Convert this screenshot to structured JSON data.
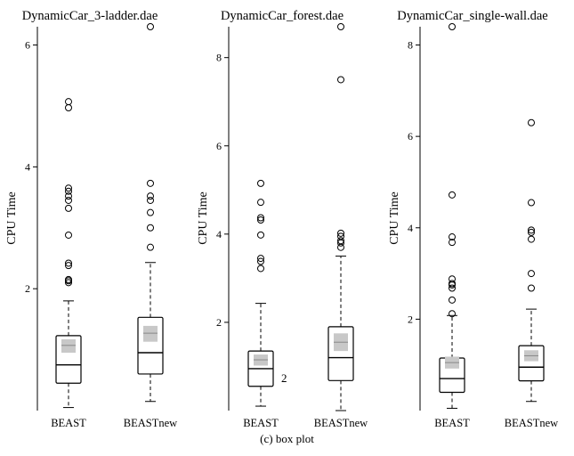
{
  "caption": "(c) box plot",
  "chart_data": [
    {
      "type": "box",
      "title": "DynamicCar_3-ladder.dae",
      "ylabel": "CPU Time",
      "yticks": [
        2,
        4,
        6
      ],
      "ylim": [
        0.0,
        6.3
      ],
      "categories": [
        "BEAST",
        "BEASTnew"
      ],
      "boxes": [
        {
          "name": "BEAST",
          "whisker_low": 0.05,
          "q1": 0.45,
          "median": 0.75,
          "q3": 1.23,
          "whisker_high": 1.8,
          "mean": 1.07,
          "mean_ci": [
            0.95,
            1.17
          ],
          "outliers": [
            2.1,
            2.13,
            2.15,
            2.38,
            2.42,
            2.88,
            3.32,
            3.45,
            3.52,
            3.6,
            3.65,
            4.97,
            5.07
          ]
        },
        {
          "name": "BEASTnew",
          "whisker_low": 0.15,
          "q1": 0.6,
          "median": 0.95,
          "q3": 1.53,
          "whisker_high": 2.43,
          "mean": 1.27,
          "mean_ci": [
            1.13,
            1.39
          ],
          "outliers": [
            2.68,
            3.0,
            3.25,
            3.45,
            3.52,
            3.73,
            6.3
          ]
        }
      ]
    },
    {
      "type": "box",
      "title": "DynamicCar_forest.dae",
      "ylabel": "CPU Time",
      "yticks": [
        2,
        4,
        6,
        8
      ],
      "ylim": [
        0.0,
        8.7
      ],
      "categories": [
        "BEAST",
        "BEASTnew"
      ],
      "annotations": [
        {
          "text": "2",
          "category": "BEAST",
          "y": 0.75
        }
      ],
      "boxes": [
        {
          "name": "BEAST",
          "whisker_low": 0.1,
          "q1": 0.55,
          "median": 0.95,
          "q3": 1.35,
          "whisker_high": 2.43,
          "mean": 1.15,
          "mean_ci": [
            1.02,
            1.27
          ],
          "outliers": [
            3.22,
            3.38,
            3.45,
            3.98,
            4.32,
            4.37,
            4.72,
            5.15
          ]
        },
        {
          "name": "BEASTnew",
          "whisker_low": 0.0,
          "q1": 0.68,
          "median": 1.2,
          "q3": 1.9,
          "whisker_high": 3.5,
          "mean": 1.55,
          "mean_ci": [
            1.35,
            1.75
          ],
          "outliers": [
            3.7,
            3.8,
            3.85,
            3.95,
            4.02,
            7.5,
            8.7
          ]
        }
      ]
    },
    {
      "type": "box",
      "title": "DynamicCar_single-wall.dae",
      "ylabel": "CPU Time",
      "yticks": [
        2,
        4,
        6,
        8
      ],
      "ylim": [
        0.0,
        8.4
      ],
      "categories": [
        "BEAST",
        "BEASTnew"
      ],
      "boxes": [
        {
          "name": "BEAST",
          "whisker_low": 0.05,
          "q1": 0.4,
          "median": 0.7,
          "q3": 1.15,
          "whisker_high": 2.08,
          "mean": 1.05,
          "mean_ci": [
            0.92,
            1.18
          ],
          "outliers": [
            2.12,
            2.42,
            2.68,
            2.75,
            2.78,
            2.88,
            3.68,
            3.8,
            4.72,
            8.4
          ]
        },
        {
          "name": "BEASTnew",
          "whisker_low": 0.2,
          "q1": 0.65,
          "median": 0.95,
          "q3": 1.42,
          "whisker_high": 2.22,
          "mean": 1.2,
          "mean_ci": [
            1.08,
            1.32
          ],
          "outliers": [
            2.68,
            3.0,
            3.75,
            3.9,
            3.95,
            4.55,
            6.3
          ]
        }
      ]
    }
  ]
}
